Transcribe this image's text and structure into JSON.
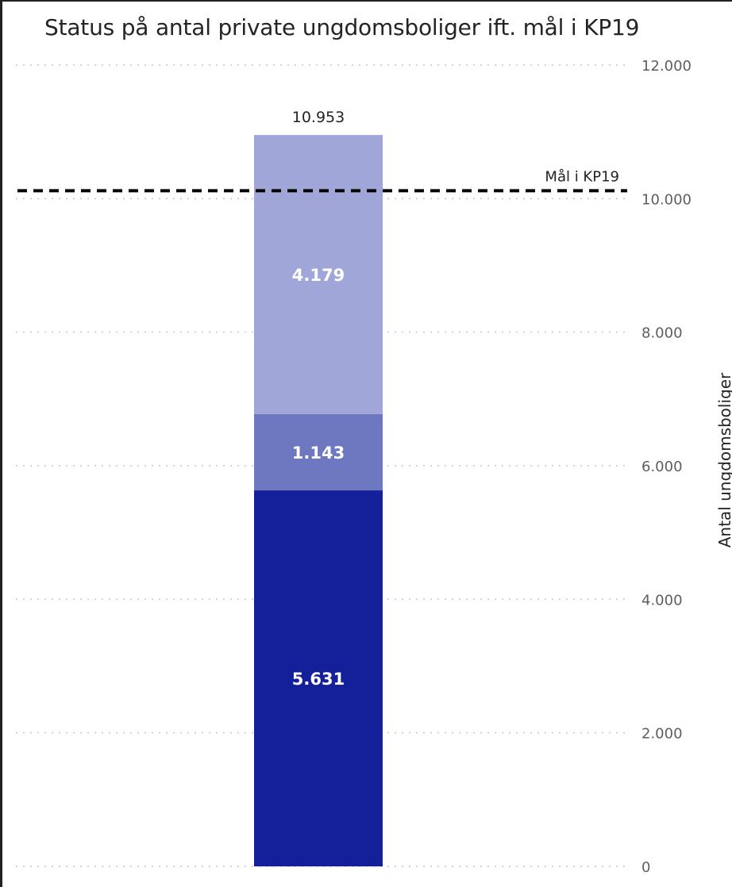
{
  "chart_data": {
    "type": "bar",
    "stacked": true,
    "title": "Status på antal private ungdomsboliger ift. mål i KP19",
    "ylabel": "Antal ungdomsboliger",
    "ylim": [
      0,
      12000
    ],
    "yticks": [
      0,
      2000,
      4000,
      6000,
      8000,
      10000,
      12000
    ],
    "ytick_labels": [
      "0",
      "2.000",
      "4.000",
      "6.000",
      "8.000",
      "10.000",
      "12.000"
    ],
    "y_axis_position": "right",
    "grid": true,
    "categories": [
      ""
    ],
    "series": [
      {
        "values": [
          5631
        ],
        "label": "5.631",
        "color": "#13209a"
      },
      {
        "values": [
          1143
        ],
        "label": "1.143",
        "color": "#6e78c0"
      },
      {
        "values": [
          4179
        ],
        "label": "4.179",
        "color": "#a0a6d8"
      }
    ],
    "total": {
      "value": 10953,
      "label": "10.953"
    },
    "target_line": {
      "value": 10000,
      "label": "Mål i KP19",
      "style": "dashed",
      "color": "#000000"
    }
  }
}
